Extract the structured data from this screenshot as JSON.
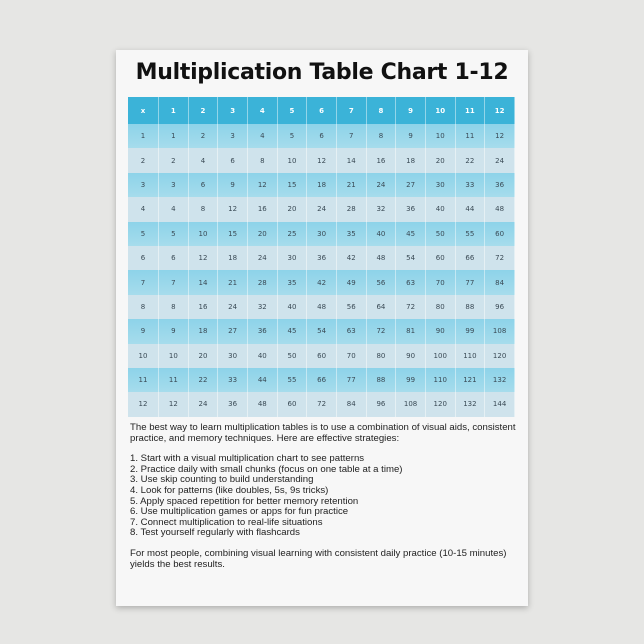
{
  "title": "Multiplication Table Chart 1-12",
  "colors": {
    "header": "#3bb3d8",
    "row_odd": "#8dd3e9",
    "row_even": "#cfe3ec"
  },
  "table": {
    "corner": "x",
    "columns": [
      "1",
      "2",
      "3",
      "4",
      "5",
      "6",
      "7",
      "8",
      "9",
      "10",
      "11",
      "12"
    ],
    "rows": [
      [
        "1",
        "1",
        "2",
        "3",
        "4",
        "5",
        "6",
        "7",
        "8",
        "9",
        "10",
        "11",
        "12"
      ],
      [
        "2",
        "2",
        "4",
        "6",
        "8",
        "10",
        "12",
        "14",
        "16",
        "18",
        "20",
        "22",
        "24"
      ],
      [
        "3",
        "3",
        "6",
        "9",
        "12",
        "15",
        "18",
        "21",
        "24",
        "27",
        "30",
        "33",
        "36"
      ],
      [
        "4",
        "4",
        "8",
        "12",
        "16",
        "20",
        "24",
        "28",
        "32",
        "36",
        "40",
        "44",
        "48"
      ],
      [
        "5",
        "5",
        "10",
        "15",
        "20",
        "25",
        "30",
        "35",
        "40",
        "45",
        "50",
        "55",
        "60"
      ],
      [
        "6",
        "6",
        "12",
        "18",
        "24",
        "30",
        "36",
        "42",
        "48",
        "54",
        "60",
        "66",
        "72"
      ],
      [
        "7",
        "7",
        "14",
        "21",
        "28",
        "35",
        "42",
        "49",
        "56",
        "63",
        "70",
        "77",
        "84"
      ],
      [
        "8",
        "8",
        "16",
        "24",
        "32",
        "40",
        "48",
        "56",
        "64",
        "72",
        "80",
        "88",
        "96"
      ],
      [
        "9",
        "9",
        "18",
        "27",
        "36",
        "45",
        "54",
        "63",
        "72",
        "81",
        "90",
        "99",
        "108"
      ],
      [
        "10",
        "10",
        "20",
        "30",
        "40",
        "50",
        "60",
        "70",
        "80",
        "90",
        "100",
        "110",
        "120"
      ],
      [
        "11",
        "11",
        "22",
        "33",
        "44",
        "55",
        "66",
        "77",
        "88",
        "99",
        "110",
        "121",
        "132"
      ],
      [
        "12",
        "12",
        "24",
        "36",
        "48",
        "60",
        "72",
        "84",
        "96",
        "108",
        "120",
        "132",
        "144"
      ]
    ]
  },
  "intro": "The best way to learn multiplication tables is to use a combination of visual aids, consistent practice, and memory techniques. Here are effective strategies:",
  "strategies": [
    "1. Start with a visual multiplication chart to see patterns",
    "2. Practice daily with small chunks (focus on one table at a time)",
    "3. Use skip counting to build understanding",
    "4. Look for patterns (like doubles, 5s, 9s tricks)",
    "5. Apply spaced repetition for better memory retention",
    "6. Use multiplication games or apps for fun practice",
    "7. Connect multiplication to real-life situations",
    "8. Test yourself regularly with flashcards"
  ],
  "conclusion": "For most people, combining visual learning with consistent daily practice (10-15 minutes) yields the best results."
}
